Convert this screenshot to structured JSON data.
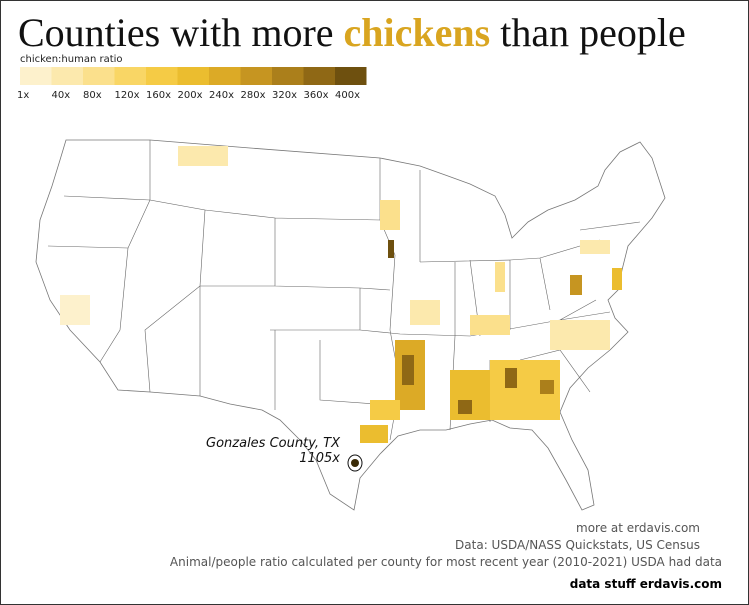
{
  "title": {
    "parts": [
      "Counties with more ",
      "chickens",
      " than people"
    ]
  },
  "legend": {
    "title": "chicken:human ratio",
    "items": [
      {
        "label": "1x",
        "color": "#fdf1cc"
      },
      {
        "label": "40x",
        "color": "#fce9ad"
      },
      {
        "label": "80x",
        "color": "#fbe08c"
      },
      {
        "label": "120x",
        "color": "#f9d665"
      },
      {
        "label": "160x",
        "color": "#f5cb45"
      },
      {
        "label": "200x",
        "color": "#ebbd2f"
      },
      {
        "label": "240x",
        "color": "#dcaa26"
      },
      {
        "label": "280x",
        "color": "#c69521"
      },
      {
        "label": "320x",
        "color": "#ab7f1b"
      },
      {
        "label": "360x",
        "color": "#8f6815"
      },
      {
        "label": "400x",
        "color": "#6e500f"
      }
    ]
  },
  "annotation": {
    "name": "Gonzales County, TX",
    "ratio": "1105x"
  },
  "credits": [
    "more at erdavis.com",
    "Data: USDA/NASS Quickstats, US Census",
    "Animal/people ratio calculated per county for most recent year (2010-2021) USDA had data"
  ],
  "badge": "data stuff erdavis.com"
}
